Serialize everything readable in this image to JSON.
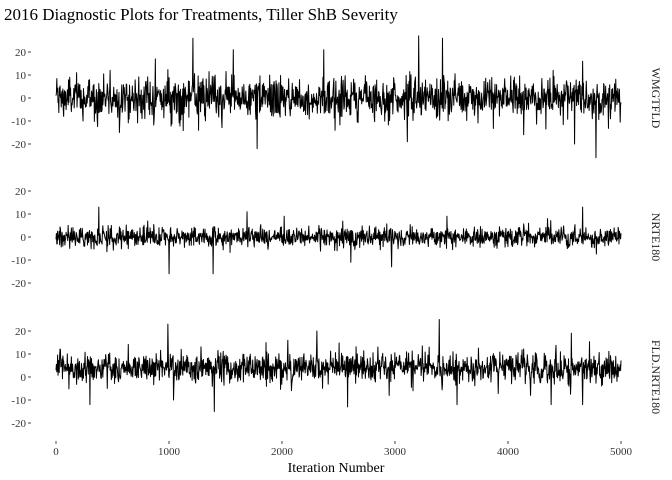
{
  "chart_data": {
    "type": "line",
    "title": "2016 Diagnostic Plots for Treatments, Tiller ShB Severity",
    "xlabel": "Iteration Number",
    "ylabel": "",
    "xlim": [
      0,
      5000
    ],
    "ylim": [
      -25,
      25
    ],
    "x_ticks": [
      0,
      1000,
      2000,
      3000,
      4000,
      5000
    ],
    "y_ticks": [
      -20,
      -10,
      0,
      10,
      20
    ],
    "grid": false,
    "legend": "none",
    "iterations": 5000,
    "panels": [
      {
        "label": "WMGTFLD",
        "center": 0,
        "spread": 4.5,
        "points": [
          [
            0,
            1
          ],
          [
            120,
            9
          ],
          [
            240,
            -10
          ],
          [
            480,
            12
          ],
          [
            560,
            -15
          ],
          [
            880,
            17
          ],
          [
            1210,
            26
          ],
          [
            1260,
            -14
          ],
          [
            1570,
            21
          ],
          [
            1780,
            -22
          ],
          [
            2370,
            21
          ],
          [
            2470,
            -14
          ],
          [
            3110,
            -19
          ],
          [
            3210,
            27
          ],
          [
            3420,
            26
          ],
          [
            4140,
            -16
          ],
          [
            4400,
            12
          ],
          [
            4590,
            -20
          ],
          [
            4660,
            16
          ],
          [
            4780,
            -26
          ],
          [
            4950,
            -3
          ]
        ]
      },
      {
        "label": "NRTE180",
        "center": 0,
        "spread": 2.2,
        "points": [
          [
            0,
            -1
          ],
          [
            380,
            13
          ],
          [
            1000,
            -16
          ],
          [
            1390,
            -16
          ],
          [
            1690,
            11
          ],
          [
            2020,
            9
          ],
          [
            2610,
            -11
          ],
          [
            2970,
            -13
          ],
          [
            3460,
            9
          ],
          [
            4350,
            8
          ],
          [
            4660,
            13
          ],
          [
            4950,
            -1
          ]
        ]
      },
      {
        "label": "FLD.NRTE180",
        "center": 4,
        "spread": 3.4,
        "points": [
          [
            0,
            3
          ],
          [
            300,
            -12
          ],
          [
            990,
            23
          ],
          [
            1040,
            -10
          ],
          [
            1400,
            -15
          ],
          [
            2050,
            16
          ],
          [
            2310,
            20
          ],
          [
            2580,
            -13
          ],
          [
            2950,
            -8
          ],
          [
            3390,
            25
          ],
          [
            3550,
            -12
          ],
          [
            4200,
            -8
          ],
          [
            4380,
            -12
          ],
          [
            4560,
            19
          ],
          [
            4660,
            -12
          ],
          [
            4950,
            3
          ]
        ]
      }
    ]
  }
}
